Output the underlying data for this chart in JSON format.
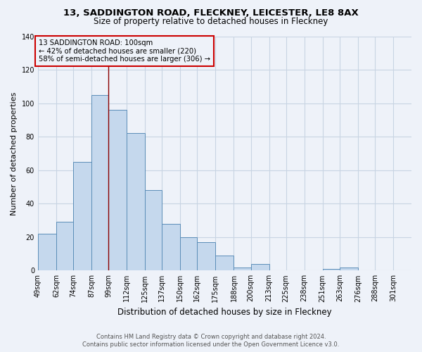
{
  "title": "13, SADDINGTON ROAD, FLECKNEY, LEICESTER, LE8 8AX",
  "subtitle": "Size of property relative to detached houses in Fleckney",
  "xlabel": "Distribution of detached houses by size in Fleckney",
  "ylabel": "Number of detached properties",
  "bin_labels": [
    "49sqm",
    "62sqm",
    "74sqm",
    "87sqm",
    "99sqm",
    "112sqm",
    "125sqm",
    "137sqm",
    "150sqm",
    "162sqm",
    "175sqm",
    "188sqm",
    "200sqm",
    "213sqm",
    "225sqm",
    "238sqm",
    "251sqm",
    "263sqm",
    "276sqm",
    "288sqm",
    "301sqm"
  ],
  "bar_heights": [
    22,
    29,
    65,
    105,
    96,
    82,
    48,
    28,
    20,
    17,
    9,
    2,
    4,
    0,
    0,
    0,
    1,
    2,
    0,
    0,
    0
  ],
  "bar_color": "#c5d8ed",
  "bar_edge_color": "#5b8db8",
  "grid_color": "#c8d4e3",
  "bg_color": "#eef2f9",
  "marker_label_line1": "13 SADDINGTON ROAD: 100sqm",
  "marker_label_line2": "← 42% of detached houses are smaller (220)",
  "marker_label_line3": "58% of semi-detached houses are larger (306) →",
  "marker_line_color": "#8b0000",
  "box_edge_color": "#cc0000",
  "ylim": [
    0,
    140
  ],
  "yticks": [
    0,
    20,
    40,
    60,
    80,
    100,
    120,
    140
  ],
  "footer_line1": "Contains HM Land Registry data © Crown copyright and database right 2024.",
  "footer_line2": "Contains public sector information licensed under the Open Government Licence v3.0."
}
